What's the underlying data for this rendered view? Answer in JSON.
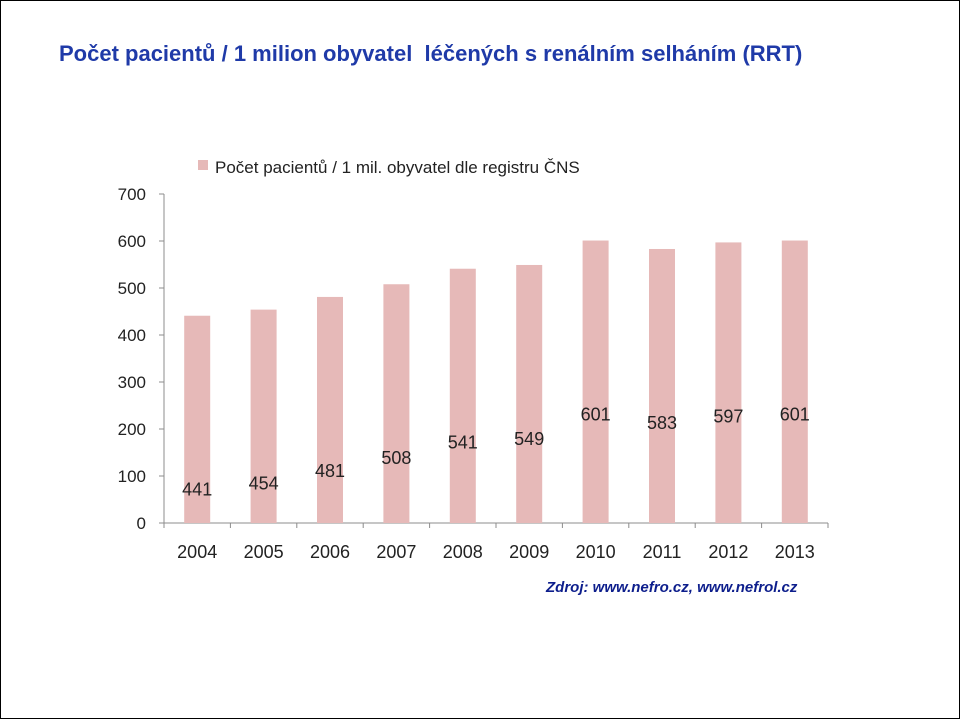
{
  "slide": {
    "title": "Počet pacientů / 1 milion obyvatel  léčených s renálním selháním (RRT)",
    "source": "Zdroj: www.nefro.cz, www.nefrol.cz"
  },
  "colors": {
    "bar": "#e6b9b8",
    "title": "#1f3aa8",
    "source": "#0d1e8c",
    "axis": "#8c8c8c"
  },
  "chart_data": {
    "type": "bar",
    "categories": [
      "2004",
      "2005",
      "2006",
      "2007",
      "2008",
      "2009",
      "2010",
      "2011",
      "2012",
      "2013"
    ],
    "series": [
      {
        "name": "Počet pacientů / 1 mil. obyvatel dle registru ČNS",
        "values": [
          441,
          454,
          481,
          508,
          541,
          549,
          601,
          583,
          597,
          601
        ],
        "data_labels": [
          "441",
          "454",
          "481",
          "508",
          "541",
          "549",
          "601",
          "583",
          "597",
          "601"
        ]
      }
    ],
    "yticks": [
      "0",
      "100",
      "200",
      "300",
      "400",
      "500",
      "600",
      "700"
    ],
    "ylim": [
      0,
      700
    ],
    "legend_position": "top",
    "grid": false
  }
}
